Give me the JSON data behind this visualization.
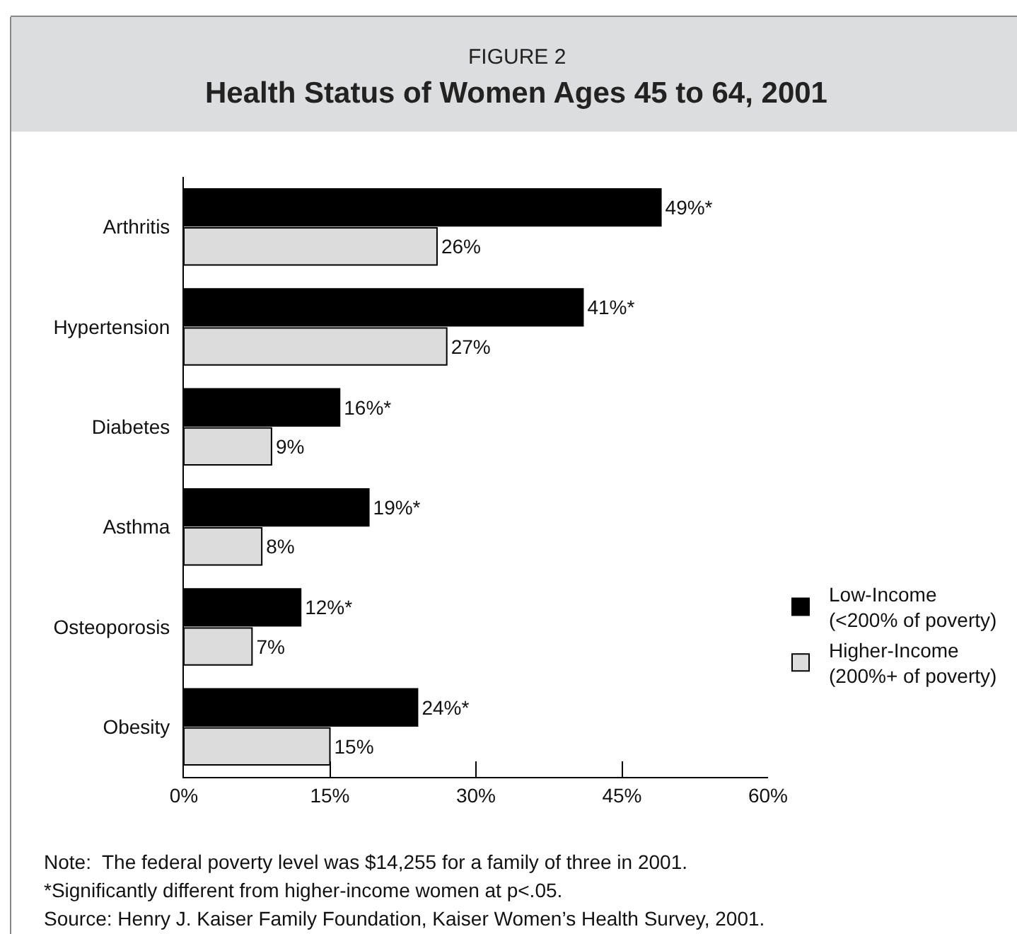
{
  "chart_data": {
    "type": "bar",
    "orientation": "horizontal",
    "subtitle": "FIGURE 2",
    "title": "Health Status of Women Ages 45 to 64, 2001",
    "categories": [
      "Arthritis",
      "Hypertension",
      "Diabetes",
      "Asthma",
      "Osteoporosis",
      "Obesity"
    ],
    "series": [
      {
        "name": "Low-Income\n(<200% of poverty)",
        "color": "#000000",
        "values": [
          49,
          41,
          16,
          19,
          12,
          24
        ],
        "value_labels": [
          "49%*",
          "41%*",
          "16%*",
          "19%*",
          "12%*",
          "24%*"
        ]
      },
      {
        "name": "Higher-Income\n(200%+ of poverty)",
        "color": "#dcdcdc",
        "values": [
          26,
          27,
          9,
          8,
          7,
          15
        ],
        "value_labels": [
          "26%",
          "27%",
          "9%",
          "8%",
          "7%",
          "15%"
        ]
      }
    ],
    "xlim": [
      0,
      60
    ],
    "xticks": [
      {
        "value": 0,
        "label": "0%"
      },
      {
        "value": 15,
        "label": "15%"
      },
      {
        "value": 30,
        "label": "30%"
      },
      {
        "value": 45,
        "label": "45%"
      },
      {
        "value": 60,
        "label": "60%"
      }
    ],
    "grid": false,
    "legend": "right",
    "annotations": [
      "Note:  The federal poverty level was $14,255 for a family of three in 2001.",
      "*Significantly different from higher-income women at p<.05.",
      "Source: Henry J. Kaiser Family Foundation, Kaiser Women’s Health Survey, 2001."
    ]
  }
}
